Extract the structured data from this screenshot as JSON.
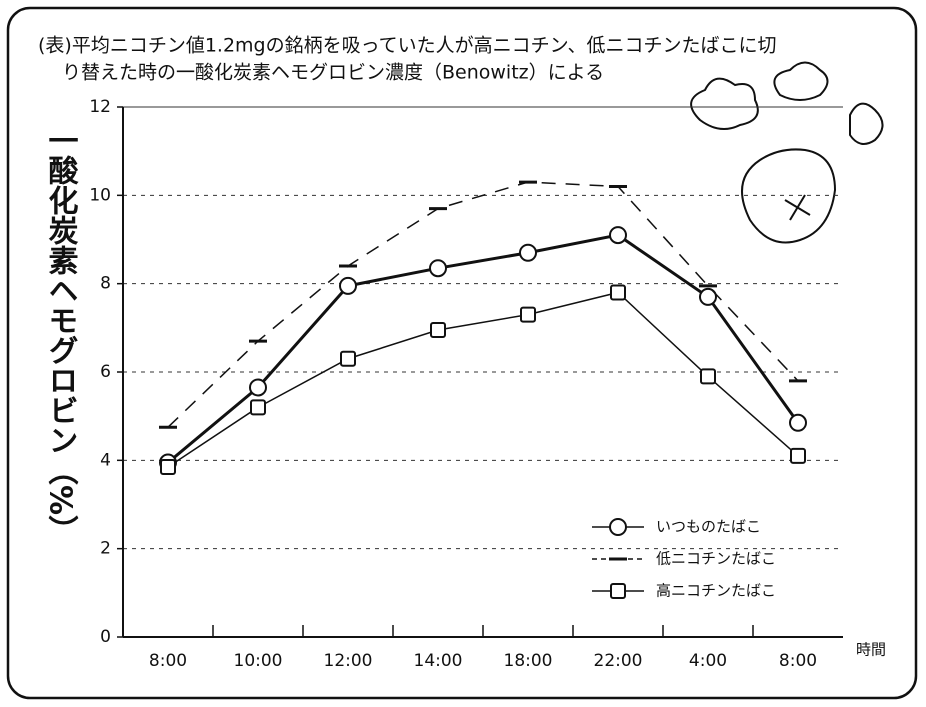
{
  "chart_data": {
    "type": "line",
    "title": "(表)平均ニコチン値1.2mgの銘柄を吸っていた人が高ニコチン、低ニコチンたばこに切",
    "subtitle": "り替えた時の一酸化炭素ヘモグロビン濃度（Benowitz）による",
    "y_label": "一酸化炭素ヘモグロビン（%）",
    "x_label": "時間",
    "categories": [
      "8:00",
      "10:00",
      "12:00",
      "14:00",
      "18:00",
      "22:00",
      "4:00",
      "8:00"
    ],
    "series": [
      {
        "name": "いつものたばこ",
        "color": "#111111",
        "marker": "circle",
        "dash": false,
        "values": [
          3.95,
          5.65,
          7.95,
          8.35,
          8.7,
          9.1,
          7.7,
          4.85
        ]
      },
      {
        "name": "低ニコチンたばこ",
        "color": "#111111",
        "marker": "dash",
        "dash": true,
        "values": [
          4.75,
          6.7,
          8.4,
          9.7,
          10.3,
          10.2,
          7.95,
          5.8
        ]
      },
      {
        "name": "高ニコチンたばこ",
        "color": "#111111",
        "marker": "square",
        "dash": false,
        "values": [
          3.85,
          5.2,
          6.3,
          6.95,
          7.3,
          7.8,
          5.9,
          4.1
        ]
      }
    ],
    "ylim": [
      0,
      12
    ],
    "yticks": [
      0,
      2,
      4,
      6,
      8,
      10,
      12
    ],
    "grid": true
  }
}
